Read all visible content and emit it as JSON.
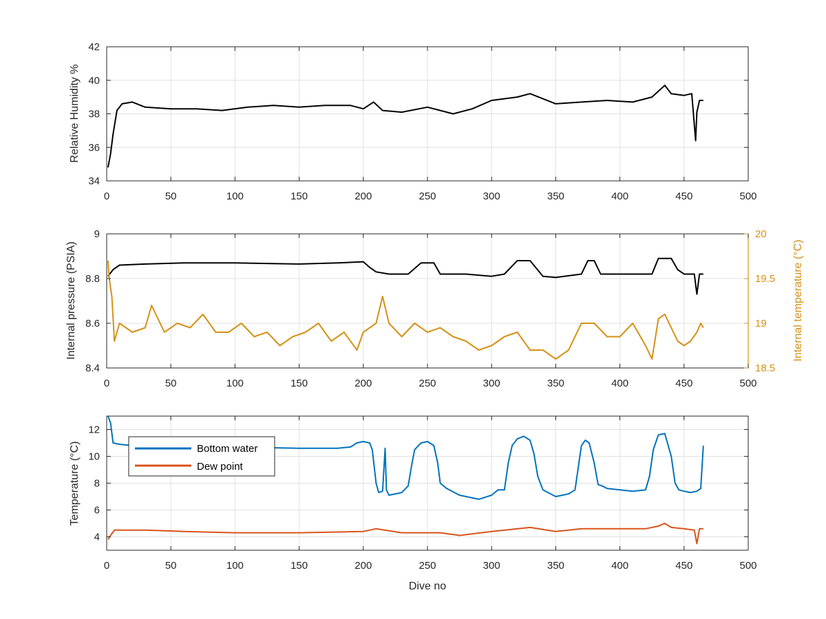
{
  "chart_data": [
    {
      "type": "line",
      "title": "",
      "xlabel": "",
      "ylabel": "Relative Humidity %",
      "xlim": [
        0,
        500
      ],
      "ylim": [
        34,
        42
      ],
      "xticks": [
        "0",
        "50",
        "100",
        "150",
        "200",
        "250",
        "300",
        "350",
        "400",
        "450",
        "500"
      ],
      "yticks": [
        "34",
        "36",
        "38",
        "40",
        "42"
      ],
      "grid": true,
      "series": [
        {
          "name": "",
          "color": "#000000",
          "x": [
            1,
            3,
            5,
            8,
            12,
            20,
            30,
            50,
            70,
            90,
            110,
            130,
            150,
            170,
            190,
            200,
            208,
            215,
            230,
            250,
            270,
            285,
            300,
            320,
            330,
            350,
            370,
            390,
            410,
            425,
            435,
            440,
            450,
            456,
            459,
            460,
            462,
            465
          ],
          "y": [
            34.8,
            35.6,
            36.8,
            38.2,
            38.6,
            38.7,
            38.4,
            38.3,
            38.3,
            38.2,
            38.4,
            38.5,
            38.4,
            38.5,
            38.5,
            38.3,
            38.7,
            38.2,
            38.1,
            38.4,
            38.0,
            38.3,
            38.8,
            39.0,
            39.2,
            38.6,
            38.7,
            38.8,
            38.7,
            39.0,
            39.7,
            39.2,
            39.1,
            39.2,
            36.4,
            38.1,
            38.8,
            38.8
          ]
        }
      ]
    },
    {
      "type": "line",
      "title": "",
      "xlabel": "",
      "ylabel": "Internal pressure (PSIA)",
      "y2label": "Internal temperature (°C)",
      "xlim": [
        0,
        500
      ],
      "ylim": [
        8.4,
        9.0
      ],
      "y2lim": [
        18.5,
        20.0
      ],
      "xticks": [
        "0",
        "50",
        "100",
        "150",
        "200",
        "250",
        "300",
        "350",
        "400",
        "450",
        "500"
      ],
      "yticks": [
        "8.4",
        "8.6",
        "8.8",
        "9"
      ],
      "y2ticks": [
        "18.5",
        "19",
        "19.5",
        "20"
      ],
      "grid": true,
      "series": [
        {
          "name": "",
          "axis": "left",
          "color": "#000000",
          "x": [
            1,
            5,
            10,
            30,
            60,
            100,
            150,
            180,
            200,
            205,
            210,
            220,
            235,
            245,
            255,
            260,
            280,
            300,
            310,
            320,
            330,
            340,
            350,
            370,
            375,
            380,
            385,
            400,
            420,
            425,
            430,
            440,
            445,
            450,
            458,
            460,
            462,
            465
          ],
          "y": [
            8.81,
            8.84,
            8.86,
            8.865,
            8.87,
            8.87,
            8.865,
            8.87,
            8.875,
            8.85,
            8.83,
            8.82,
            8.82,
            8.87,
            8.87,
            8.82,
            8.82,
            8.81,
            8.82,
            8.88,
            8.88,
            8.81,
            8.805,
            8.82,
            8.88,
            8.88,
            8.82,
            8.82,
            8.82,
            8.82,
            8.89,
            8.89,
            8.84,
            8.82,
            8.82,
            8.73,
            8.82,
            8.82
          ]
        },
        {
          "name": "",
          "axis": "right",
          "color": "#d49116",
          "x": [
            1,
            2,
            4,
            6,
            10,
            20,
            30,
            35,
            45,
            55,
            65,
            75,
            85,
            95,
            105,
            115,
            125,
            135,
            145,
            155,
            165,
            175,
            185,
            195,
            200,
            210,
            215,
            220,
            230,
            240,
            250,
            260,
            270,
            280,
            290,
            300,
            310,
            320,
            330,
            340,
            350,
            360,
            370,
            380,
            390,
            400,
            410,
            420,
            425,
            430,
            435,
            440,
            445,
            450,
            455,
            460,
            463,
            465
          ],
          "y": [
            19.7,
            19.5,
            19.3,
            18.8,
            19.0,
            18.9,
            18.95,
            19.2,
            18.9,
            19.0,
            18.95,
            19.1,
            18.9,
            18.9,
            19.0,
            18.85,
            18.9,
            18.75,
            18.85,
            18.9,
            19.0,
            18.8,
            18.9,
            18.7,
            18.9,
            19.0,
            19.3,
            19.0,
            18.85,
            19.0,
            18.9,
            18.95,
            18.85,
            18.8,
            18.7,
            18.75,
            18.85,
            18.9,
            18.7,
            18.7,
            18.6,
            18.7,
            19.0,
            19.0,
            18.85,
            18.85,
            19.0,
            18.75,
            18.6,
            19.05,
            19.1,
            18.95,
            18.8,
            18.75,
            18.8,
            18.9,
            19.0,
            18.95
          ]
        }
      ]
    },
    {
      "type": "line",
      "title": "",
      "xlabel": "Dive no",
      "ylabel": "Temperature (°C)",
      "xlim": [
        0,
        500
      ],
      "ylim": [
        3,
        13
      ],
      "xticks": [
        "0",
        "50",
        "100",
        "150",
        "200",
        "250",
        "300",
        "350",
        "400",
        "450",
        "500"
      ],
      "yticks": [
        "4",
        "6",
        "8",
        "10",
        "12"
      ],
      "grid": true,
      "legend": "top-left",
      "series": [
        {
          "name": "Bottom water",
          "color": "#0072bd",
          "x": [
            1,
            3,
            5,
            10,
            20,
            50,
            100,
            150,
            180,
            190,
            195,
            200,
            205,
            207,
            210,
            212,
            215,
            217,
            218,
            220,
            225,
            230,
            235,
            238,
            240,
            245,
            250,
            255,
            258,
            260,
            265,
            275,
            290,
            300,
            305,
            310,
            313,
            316,
            320,
            325,
            330,
            333,
            336,
            340,
            350,
            360,
            365,
            368,
            370,
            373,
            376,
            380,
            383,
            386,
            390,
            400,
            410,
            420,
            423,
            426,
            430,
            435,
            440,
            443,
            446,
            450,
            455,
            460,
            463,
            465
          ],
          "y": [
            13.0,
            12.5,
            11.0,
            10.9,
            10.8,
            10.8,
            10.7,
            10.6,
            10.6,
            10.7,
            11.0,
            11.1,
            11.0,
            10.5,
            8.0,
            7.3,
            7.4,
            10.6,
            7.5,
            7.1,
            7.2,
            7.3,
            7.8,
            9.5,
            10.5,
            11.0,
            11.1,
            10.8,
            9.5,
            8.0,
            7.6,
            7.1,
            6.8,
            7.1,
            7.5,
            7.5,
            9.5,
            10.8,
            11.3,
            11.5,
            11.2,
            10.2,
            8.5,
            7.5,
            7.0,
            7.2,
            7.5,
            9.5,
            10.8,
            11.2,
            11.0,
            9.5,
            7.9,
            7.8,
            7.6,
            7.5,
            7.4,
            7.5,
            8.5,
            10.5,
            11.6,
            11.7,
            10.0,
            8.0,
            7.5,
            7.4,
            7.3,
            7.4,
            7.6,
            10.8
          ]
        },
        {
          "name": "Dew point",
          "color": "#d95319",
          "x": [
            1,
            3,
            6,
            10,
            30,
            60,
            100,
            150,
            200,
            210,
            230,
            260,
            275,
            300,
            330,
            350,
            370,
            400,
            420,
            430,
            435,
            440,
            450,
            458,
            460,
            462,
            465
          ],
          "y": [
            3.8,
            4.1,
            4.5,
            4.5,
            4.5,
            4.4,
            4.3,
            4.3,
            4.4,
            4.6,
            4.3,
            4.3,
            4.1,
            4.4,
            4.7,
            4.4,
            4.6,
            4.6,
            4.6,
            4.8,
            5.0,
            4.7,
            4.6,
            4.5,
            3.5,
            4.6,
            4.6
          ]
        }
      ]
    }
  ]
}
